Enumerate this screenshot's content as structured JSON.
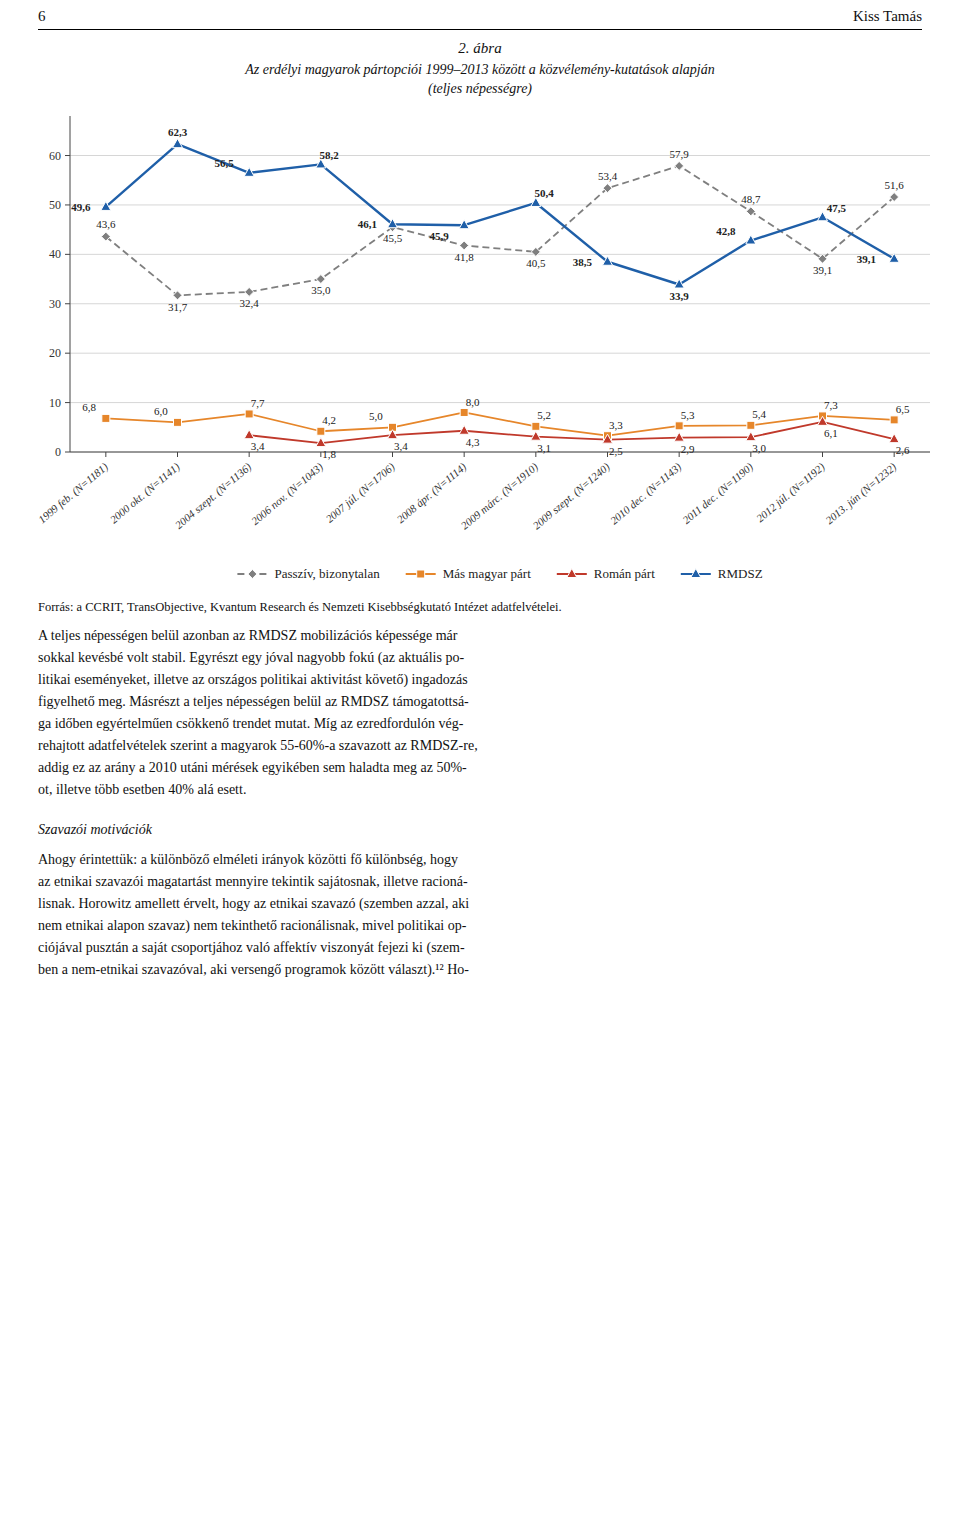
{
  "page": {
    "number": "6",
    "author": "Kiss Tamás",
    "body_text1": [
      "A teljes népességen belül azonban az RMDSZ mobilizációs képessége már",
      "sokkal kevésbé volt stabil. Egyrészt egy jóval nagyobb fokú (az aktuális po-",
      "litikai eseményeket, illetve az országos politikai aktivitást követő) ingadozás",
      "figyelhető meg. Másrészt a teljes népességen belül az RMDSZ támogatottsá-",
      "ga időben egyértelműen csökkenő trendet mutat. Míg az ezredfordulón vég-",
      "rehajtott adatfelvételek szerint a magyarok 55-60%-a szavazott az RMDSZ-re,",
      "addig ez az arány a 2010 utáni mérések egyikében sem haladta meg az 50%-",
      "ot, illetve több esetben 40% alá esett."
    ],
    "section_title": "Szavazói motivációk",
    "body_text2": [
      "Ahogy érintettük: a különböző elméleti irányok közötti fő különbség, hogy",
      "az etnikai szavazói magatartást mennyire tekintik sajátosnak, illetve racioná-",
      "lisnak. Horowitz amellett érvelt, hogy az etnikai szavazó (szemben azzal, aki",
      "nem etnikai alapon szavaz) nem tekinthető racionálisnak, mivel politikai op-",
      "ciójával pusztán a saját csoportjához való affektív viszonyát fejezi ki (szem-",
      "ben a nem-etnikai szavazóval, aki versengő programok között választ).¹² Ho-"
    ]
  },
  "chart_data": {
    "type": "line",
    "title": "2. ábra",
    "subtitle": [
      "Az erdélyi magyarok pártopciói 1999–2013 között a közvélemény-kutatások alapján",
      "(teljes népességre)"
    ],
    "source": "Forrás: a CCRIT, TransObjective, Kvantum Research és Nemzeti Kisebbségkutató Intézet adatfelvételei.",
    "categories": [
      "1999 feb. (N=1181)",
      "2000 okt. (N=1141)",
      "2004 szept. (N=1136)",
      "2006 nov. (N=1043)",
      "2007 júl. (N=1706)",
      "2008 ápr. (N=1114)",
      "2009 márc. (N=1910)",
      "2009 szept. (N=1240)",
      "2010 dec. (N=1143)",
      "2011 dec. (N=1190)",
      "2012 júl. (N=1192)",
      "2013. jún (N=1232)"
    ],
    "series": [
      {
        "name": "Passzív, bizonytalan",
        "color": "#7f7f7f",
        "line_style": "dashed",
        "marker": "diamond",
        "values": [
          43.6,
          31.7,
          32.4,
          35.0,
          45.5,
          41.8,
          40.5,
          53.4,
          57.9,
          48.7,
          39.1,
          51.6
        ],
        "value_labels": [
          "43,6",
          "31,7",
          "32,4",
          "35,0",
          "45,5",
          "41,8",
          "40,5",
          "53,4",
          "57,9",
          "48,7",
          "39,1",
          "51,6"
        ]
      },
      {
        "name": "Más magyar párt",
        "color": "#e6862a",
        "line_style": "solid",
        "marker": "square",
        "values": [
          6.8,
          6.0,
          7.7,
          4.2,
          5.0,
          8.0,
          5.2,
          3.3,
          5.3,
          5.4,
          7.3,
          6.5
        ],
        "value_labels": [
          "6,8",
          "6,0",
          "7,7",
          "4,2",
          "5,0",
          "8,0",
          "5,2",
          "3,3",
          "5,3",
          "5,4",
          "7,3",
          "6,5"
        ]
      },
      {
        "name": "Román párt",
        "color": "#c0392b",
        "line_style": "solid",
        "marker": "triangle",
        "values": [
          null,
          null,
          3.4,
          1.8,
          3.4,
          4.3,
          3.1,
          2.5,
          2.9,
          3.0,
          6.1,
          2.6
        ],
        "value_labels": [
          null,
          null,
          "3,4",
          "1,8",
          "3,4",
          "4,3",
          "3,1",
          "2,5",
          "2,9",
          "3,0",
          "6,1",
          "2,6"
        ]
      },
      {
        "name": "RMDSZ",
        "color": "#1f5fa8",
        "line_style": "solid",
        "marker": "triangle",
        "values": [
          49.6,
          62.3,
          56.5,
          58.2,
          46.1,
          45.9,
          50.4,
          38.5,
          33.9,
          42.8,
          47.5,
          39.1
        ],
        "value_labels": [
          "49,6",
          "62,3",
          "56,5",
          "58,2",
          "46,1",
          "45,9",
          "50,4",
          "38,5",
          "33,9",
          "42,8",
          "47,5",
          "39,1"
        ]
      }
    ],
    "ylim": [
      0,
      68
    ],
    "yticks": [
      0,
      10,
      20,
      30,
      40,
      50,
      60
    ],
    "grid": true,
    "legend": "bottom",
    "data_labels": true
  }
}
